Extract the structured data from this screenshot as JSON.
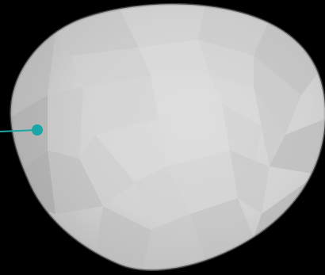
{
  "scene": {
    "background_color": "#000000",
    "object": "low-poly-rounded-mesh",
    "object_color": "#cfcfcf",
    "marker": {
      "type": "pin",
      "color": "#1aa6a6"
    }
  }
}
